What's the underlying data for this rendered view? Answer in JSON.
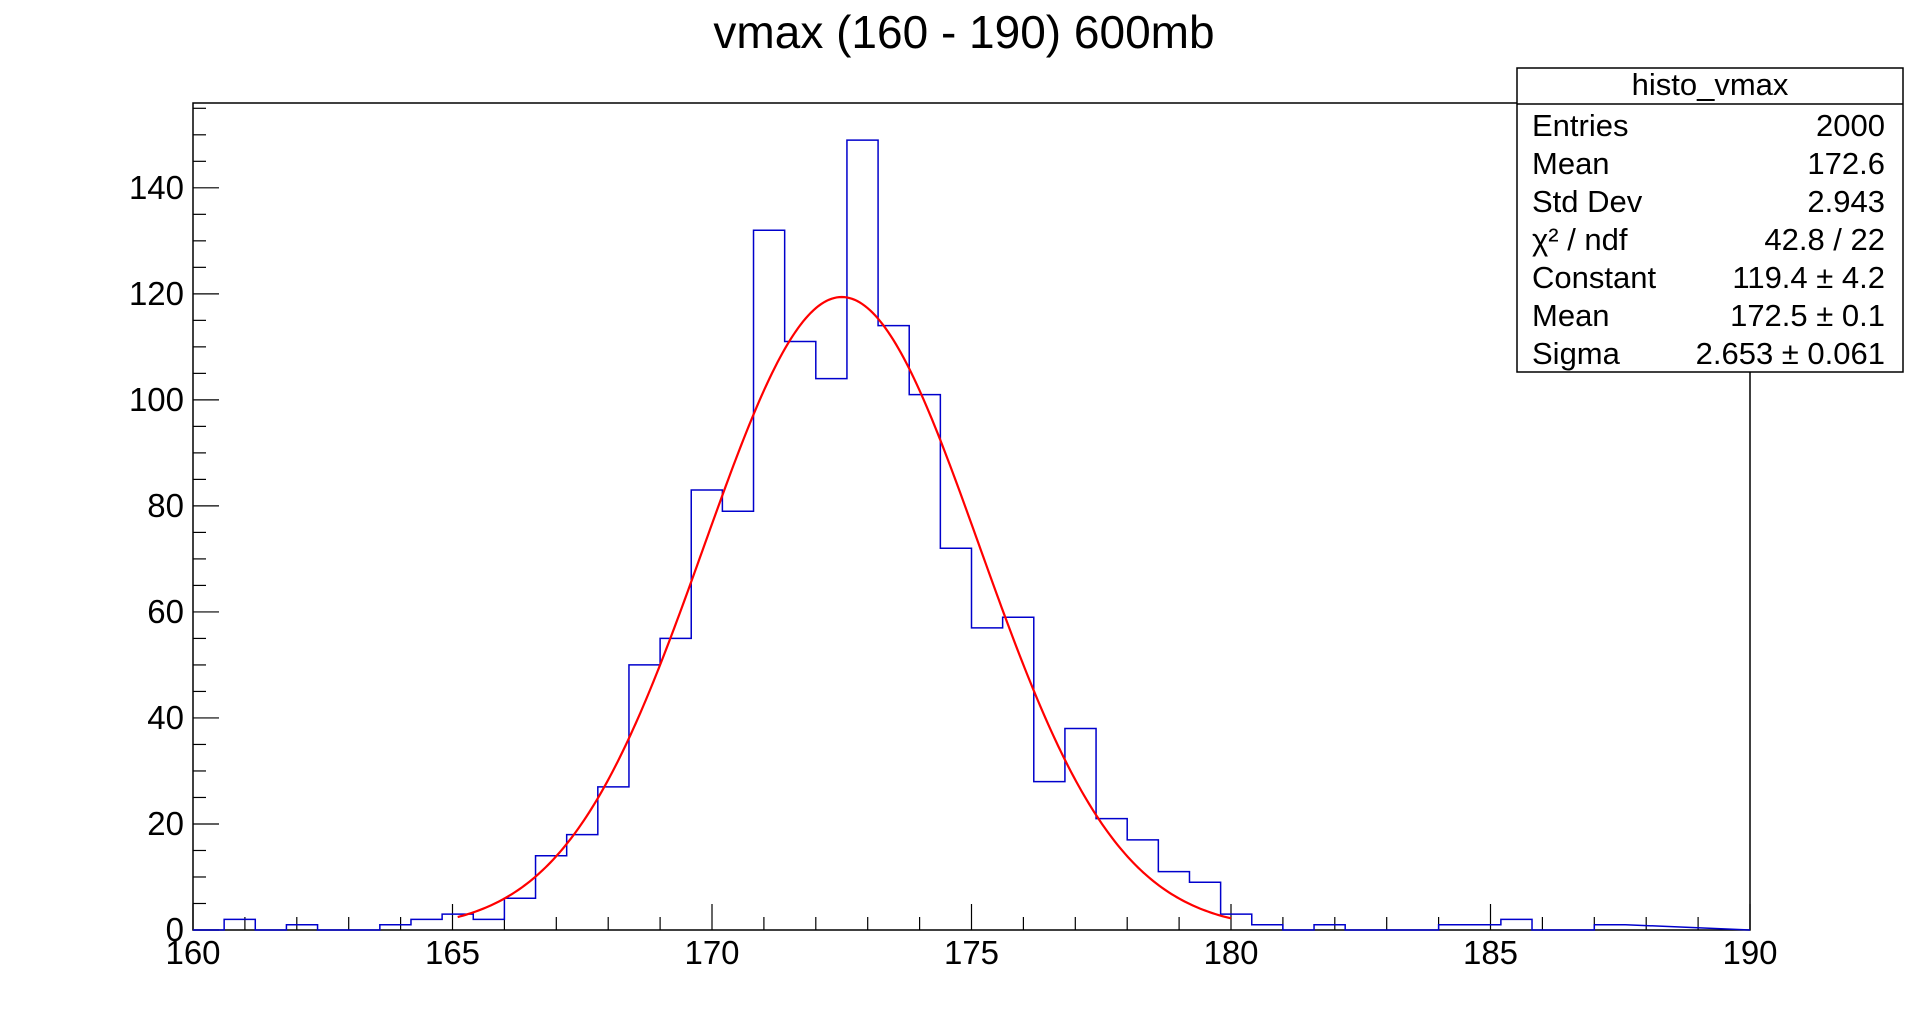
{
  "chart_data": {
    "type": "bar",
    "title": "vmax (160 - 190) 600mb",
    "xlabel": "",
    "ylabel": "",
    "xlim": [
      160,
      190
    ],
    "ylim": [
      0,
      156
    ],
    "bin_width": 0.6,
    "x_ticks": [
      "160",
      "165",
      "170",
      "175",
      "180",
      "185",
      "190"
    ],
    "y_ticks": [
      "0",
      "20",
      "40",
      "60",
      "80",
      "100",
      "120",
      "140"
    ],
    "series": [
      {
        "type": "histogram",
        "color": "#0000cc",
        "values": [
          0,
          2,
          0,
          1,
          0,
          0,
          1,
          2,
          3,
          2,
          6,
          14,
          18,
          27,
          50,
          55,
          83,
          79,
          132,
          111,
          104,
          149,
          114,
          101,
          72,
          57,
          59,
          28,
          38,
          21,
          17,
          11,
          9,
          3,
          1,
          0,
          1,
          0,
          0,
          0,
          1,
          1,
          2,
          0,
          0,
          1
        ]
      },
      {
        "type": "gaussian-fit",
        "color": "#ff0000",
        "constant": 119.4,
        "mean": 172.5,
        "sigma": 2.653,
        "range": [
          165.1,
          180
        ]
      }
    ],
    "stats_box": {
      "title": "histo_vmax",
      "rows": [
        {
          "label": "Entries",
          "value": "2000"
        },
        {
          "label": "Mean",
          "value": "172.6"
        },
        {
          "label": "Std Dev",
          "value": "2.943"
        },
        {
          "label": "χ² / ndf",
          "value": "42.8 / 22"
        },
        {
          "label": "Constant",
          "value": "119.4 ± 4.2"
        },
        {
          "label": "Mean",
          "value": "172.5 ± 0.1"
        },
        {
          "label": "Sigma",
          "value": "2.653 ± 0.061"
        }
      ]
    }
  }
}
